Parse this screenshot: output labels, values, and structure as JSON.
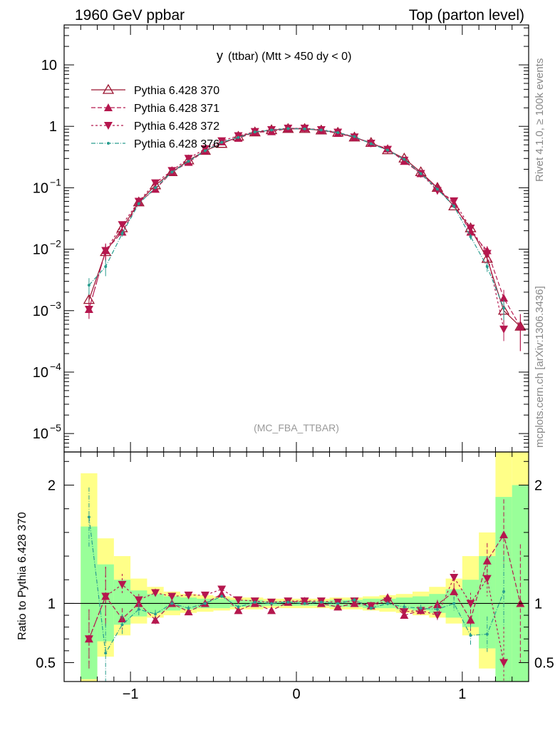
{
  "header": {
    "left_title": "1960 GeV ppbar",
    "right_title": "Top (parton level)",
    "plot_title_main": "y",
    "plot_title_rest": "(ttbar) (Mtt > 450 dy < 0)",
    "analysis_tag": "(MC_FBA_TTBAR)",
    "side_label_top": "Rivet 4.1.0, ≥ 100k events",
    "side_label_bottom": "mcplots.cern.ch [arXiv:1306.3436]",
    "ratio_ylabel": "Ratio to Pythia 6.428 370"
  },
  "colors": {
    "s370": "#9b1430",
    "s371": "#b5174e",
    "s372": "#b5174e",
    "s376": "#2a9d8f",
    "band_yellow": "#ffff88",
    "band_green": "#99ff99"
  },
  "chart_data": {
    "type": "line",
    "xlabel": "",
    "xlim": [
      -1.4,
      1.4
    ],
    "main_ylim_log": [
      -5.3,
      1.65
    ],
    "ratio_ylim": [
      0.34,
      2.28
    ],
    "xticks": [
      {
        "v": -1,
        "t": "−1"
      },
      {
        "v": 0,
        "t": "0"
      },
      {
        "v": 1,
        "t": "1"
      }
    ],
    "main_yticks": [
      {
        "e": 1,
        "base": "10",
        "exp": ""
      },
      {
        "e": 0,
        "base": "1",
        "exp": ""
      },
      {
        "e": -1,
        "base": "10",
        "exp": "−1"
      },
      {
        "e": -2,
        "base": "10",
        "exp": "−2"
      },
      {
        "e": -3,
        "base": "10",
        "exp": "−3"
      },
      {
        "e": -4,
        "base": "10",
        "exp": "−4"
      },
      {
        "e": -5,
        "base": "10",
        "exp": "−5"
      }
    ],
    "ratio_yticks": [
      {
        "v": 0.5,
        "t": "0.5"
      },
      {
        "v": 1,
        "t": "1"
      },
      {
        "v": 2,
        "t": "2"
      }
    ],
    "x": [
      -1.25,
      -1.15,
      -1.05,
      -0.95,
      -0.85,
      -0.75,
      -0.65,
      -0.55,
      -0.45,
      -0.35,
      -0.25,
      -0.15,
      -0.05,
      0.05,
      0.15,
      0.25,
      0.35,
      0.45,
      0.55,
      0.65,
      0.75,
      0.85,
      0.95,
      1.05,
      1.15,
      1.25,
      1.35
    ],
    "series": [
      {
        "name": "Pythia 6.428 370",
        "key": "s370",
        "marker": "triangle-open",
        "dash": "",
        "values": [
          0.0015,
          0.009,
          0.022,
          0.058,
          0.11,
          0.18,
          0.28,
          0.4,
          0.52,
          0.68,
          0.8,
          0.87,
          0.91,
          0.91,
          0.86,
          0.79,
          0.66,
          0.54,
          0.41,
          0.3,
          0.18,
          0.1,
          0.05,
          0.022,
          0.007,
          0.001,
          0.00055
        ]
      },
      {
        "name": "Pythia 6.428 371",
        "key": "s371",
        "marker": "triangle-up",
        "dash": "6,3",
        "values": [
          0.00105,
          0.0095,
          0.019,
          0.058,
          0.095,
          0.18,
          0.26,
          0.4,
          0.56,
          0.64,
          0.8,
          0.82,
          0.92,
          0.93,
          0.86,
          0.77,
          0.66,
          0.53,
          0.43,
          0.27,
          0.17,
          0.1,
          0.055,
          0.019,
          0.0095,
          0.0016,
          0.00055
        ]
      },
      {
        "name": "Pythia 6.428 372",
        "key": "s372",
        "marker": "triangle-down",
        "dash": "3,3",
        "values": [
          0.00105,
          0.0095,
          0.025,
          0.06,
          0.12,
          0.19,
          0.3,
          0.43,
          0.58,
          0.7,
          0.82,
          0.88,
          0.93,
          0.93,
          0.88,
          0.8,
          0.67,
          0.53,
          0.42,
          0.28,
          0.17,
          0.09,
          0.061,
          0.022,
          0.0085,
          0.0005,
          0.0
        ]
      },
      {
        "name": "Pythia 6.428 376",
        "key": "s376",
        "marker": "dot",
        "dash": "6,2,1,2",
        "values": [
          0.0026,
          0.0052,
          0.018,
          0.055,
          0.1,
          0.18,
          0.27,
          0.4,
          0.55,
          0.66,
          0.81,
          0.87,
          0.92,
          0.91,
          0.87,
          0.79,
          0.68,
          0.52,
          0.41,
          0.29,
          0.17,
          0.095,
          0.05,
          0.016,
          0.0052,
          0.0011,
          0.0
        ]
      }
    ],
    "ratios": {
      "s371": [
        0.7,
        1.06,
        0.87,
        1.0,
        0.86,
        1.0,
        0.93,
        1.0,
        1.08,
        0.94,
        1.0,
        0.94,
        1.01,
        1.02,
        1.0,
        0.97,
        1.0,
        0.98,
        1.05,
        0.9,
        0.94,
        0.99,
        1.1,
        0.86,
        1.36,
        1.58,
        1.0
      ],
      "s372": [
        0.7,
        1.06,
        1.16,
        1.03,
        1.09,
        1.06,
        1.07,
        1.07,
        1.12,
        1.03,
        1.02,
        1.01,
        1.02,
        1.02,
        1.02,
        1.01,
        1.02,
        0.98,
        1.02,
        0.93,
        0.94,
        0.9,
        1.22,
        1.0,
        1.21,
        0.5,
        0.0
      ],
      "s376": [
        1.73,
        0.58,
        0.82,
        0.95,
        0.91,
        1.0,
        0.96,
        1.0,
        1.06,
        0.97,
        1.01,
        1.0,
        1.01,
        1.0,
        1.01,
        1.0,
        1.03,
        0.96,
        1.0,
        0.97,
        0.96,
        0.95,
        1.0,
        0.73,
        0.74,
        1.1,
        0.0
      ]
    },
    "ratio_errors": [
      0.5,
      0.5,
      0.18,
      0.1,
      0.07,
      0.05,
      0.04,
      0.03,
      0.03,
      0.03,
      0.02,
      0.02,
      0.02,
      0.02,
      0.02,
      0.02,
      0.03,
      0.03,
      0.04,
      0.05,
      0.06,
      0.08,
      0.12,
      0.18,
      0.3,
      0.6,
      1.0
    ],
    "band_yellow": [
      {
        "x0": -1.3,
        "x1": -1.2,
        "lo": 0.34,
        "hi": 2.1
      },
      {
        "x0": -1.2,
        "x1": -1.1,
        "lo": 0.55,
        "hi": 1.55
      },
      {
        "x0": -1.1,
        "x1": -1.0,
        "lo": 0.73,
        "hi": 1.4
      },
      {
        "x0": -1.0,
        "x1": -0.9,
        "lo": 0.83,
        "hi": 1.21
      },
      {
        "x0": -0.9,
        "x1": -0.8,
        "lo": 0.88,
        "hi": 1.14
      },
      {
        "x0": -0.8,
        "x1": -0.7,
        "lo": 0.9,
        "hi": 1.1
      },
      {
        "x0": -0.7,
        "x1": -0.6,
        "lo": 0.92,
        "hi": 1.08
      },
      {
        "x0": -0.6,
        "x1": -0.5,
        "lo": 0.93,
        "hi": 1.07
      },
      {
        "x0": -0.5,
        "x1": -0.4,
        "lo": 0.94,
        "hi": 1.06
      },
      {
        "x0": -0.4,
        "x1": -0.3,
        "lo": 0.95,
        "hi": 1.05
      },
      {
        "x0": -0.3,
        "x1": -0.2,
        "lo": 0.95,
        "hi": 1.05
      },
      {
        "x0": -0.2,
        "x1": -0.1,
        "lo": 0.96,
        "hi": 1.04
      },
      {
        "x0": -0.1,
        "x1": 0.0,
        "lo": 0.96,
        "hi": 1.04
      },
      {
        "x0": 0.0,
        "x1": 0.1,
        "lo": 0.96,
        "hi": 1.04
      },
      {
        "x0": 0.1,
        "x1": 0.2,
        "lo": 0.96,
        "hi": 1.04
      },
      {
        "x0": 0.2,
        "x1": 0.3,
        "lo": 0.95,
        "hi": 1.05
      },
      {
        "x0": 0.3,
        "x1": 0.4,
        "lo": 0.95,
        "hi": 1.05
      },
      {
        "x0": 0.4,
        "x1": 0.5,
        "lo": 0.94,
        "hi": 1.06
      },
      {
        "x0": 0.5,
        "x1": 0.6,
        "lo": 0.93,
        "hi": 1.07
      },
      {
        "x0": 0.6,
        "x1": 0.7,
        "lo": 0.92,
        "hi": 1.08
      },
      {
        "x0": 0.7,
        "x1": 0.8,
        "lo": 0.9,
        "hi": 1.1
      },
      {
        "x0": 0.8,
        "x1": 0.9,
        "lo": 0.88,
        "hi": 1.14
      },
      {
        "x0": 0.9,
        "x1": 1.0,
        "lo": 0.83,
        "hi": 1.21
      },
      {
        "x0": 1.0,
        "x1": 1.1,
        "lo": 0.73,
        "hi": 1.4
      },
      {
        "x0": 1.1,
        "x1": 1.2,
        "lo": 0.45,
        "hi": 1.6
      },
      {
        "x0": 1.2,
        "x1": 1.3,
        "lo": 0.34,
        "hi": 2.28
      },
      {
        "x0": 1.3,
        "x1": 1.4,
        "lo": 0.34,
        "hi": 2.28
      }
    ],
    "band_green": [
      {
        "x0": -1.3,
        "x1": -1.2,
        "lo": 0.36,
        "hi": 1.65
      },
      {
        "x0": -1.2,
        "x1": -1.1,
        "lo": 0.68,
        "hi": 1.33
      },
      {
        "x0": -1.1,
        "x1": -1.0,
        "lo": 0.82,
        "hi": 1.2
      },
      {
        "x0": -1.0,
        "x1": -0.9,
        "lo": 0.89,
        "hi": 1.11
      },
      {
        "x0": -0.9,
        "x1": -0.8,
        "lo": 0.92,
        "hi": 1.08
      },
      {
        "x0": -0.8,
        "x1": -0.7,
        "lo": 0.94,
        "hi": 1.06
      },
      {
        "x0": -0.7,
        "x1": -0.6,
        "lo": 0.95,
        "hi": 1.05
      },
      {
        "x0": -0.6,
        "x1": -0.5,
        "lo": 0.96,
        "hi": 1.04
      },
      {
        "x0": -0.5,
        "x1": -0.4,
        "lo": 0.96,
        "hi": 1.04
      },
      {
        "x0": -0.4,
        "x1": -0.3,
        "lo": 0.97,
        "hi": 1.03
      },
      {
        "x0": -0.3,
        "x1": -0.2,
        "lo": 0.97,
        "hi": 1.03
      },
      {
        "x0": -0.2,
        "x1": -0.1,
        "lo": 0.98,
        "hi": 1.02
      },
      {
        "x0": -0.1,
        "x1": 0.0,
        "lo": 0.98,
        "hi": 1.02
      },
      {
        "x0": 0.0,
        "x1": 0.1,
        "lo": 0.98,
        "hi": 1.02
      },
      {
        "x0": 0.1,
        "x1": 0.2,
        "lo": 0.98,
        "hi": 1.02
      },
      {
        "x0": 0.2,
        "x1": 0.3,
        "lo": 0.97,
        "hi": 1.03
      },
      {
        "x0": 0.3,
        "x1": 0.4,
        "lo": 0.97,
        "hi": 1.03
      },
      {
        "x0": 0.4,
        "x1": 0.5,
        "lo": 0.96,
        "hi": 1.04
      },
      {
        "x0": 0.5,
        "x1": 0.6,
        "lo": 0.96,
        "hi": 1.04
      },
      {
        "x0": 0.6,
        "x1": 0.7,
        "lo": 0.95,
        "hi": 1.05
      },
      {
        "x0": 0.7,
        "x1": 0.8,
        "lo": 0.94,
        "hi": 1.06
      },
      {
        "x0": 0.8,
        "x1": 0.9,
        "lo": 0.92,
        "hi": 1.08
      },
      {
        "x0": 0.9,
        "x1": 1.0,
        "lo": 0.88,
        "hi": 1.12
      },
      {
        "x0": 1.0,
        "x1": 1.1,
        "lo": 0.8,
        "hi": 1.2
      },
      {
        "x0": 1.1,
        "x1": 1.2,
        "lo": 0.62,
        "hi": 1.4
      },
      {
        "x0": 1.2,
        "x1": 1.3,
        "lo": 0.34,
        "hi": 1.9
      },
      {
        "x0": 1.3,
        "x1": 1.4,
        "lo": 0.34,
        "hi": 2.0
      }
    ]
  }
}
